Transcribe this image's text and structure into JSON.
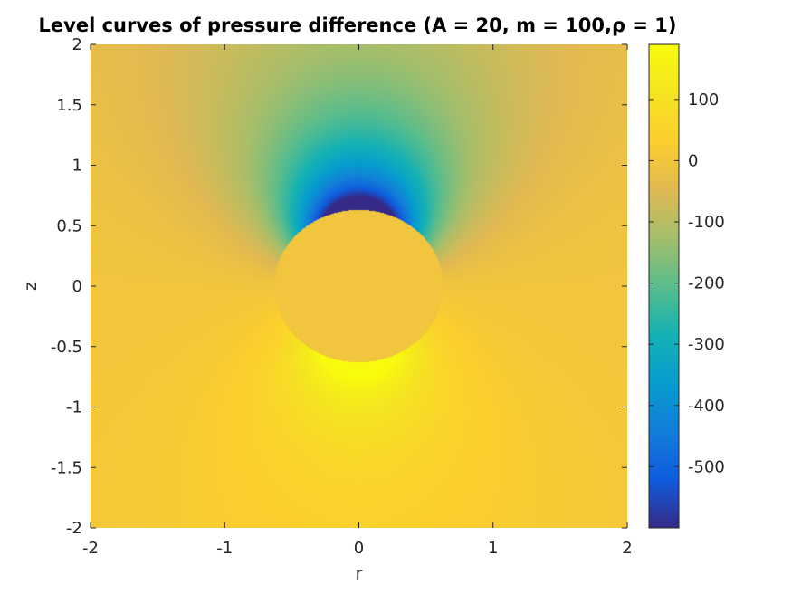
{
  "chart_data": {
    "type": "heatmap",
    "title": "Level curves of pressure difference (A = 20, m = 100,ρ = 1)",
    "xlabel": "r",
    "ylabel": "z",
    "xlim": [
      -2,
      2
    ],
    "ylim": [
      -2,
      2
    ],
    "x_ticks": [
      -2,
      -1,
      0,
      1,
      2
    ],
    "y_ticks": [
      -2,
      -1.5,
      -1,
      -0.5,
      0,
      0.5,
      1,
      1.5,
      2
    ],
    "sphere_radius": 0.63,
    "sphere_value": 0,
    "colorbar": {
      "range": [
        -600,
        190
      ],
      "ticks": [
        -500,
        -400,
        -300,
        -200,
        -100,
        0,
        100
      ]
    },
    "colormap": "parula",
    "parameters": {
      "A": 20,
      "m": 100,
      "rho": 1
    }
  }
}
